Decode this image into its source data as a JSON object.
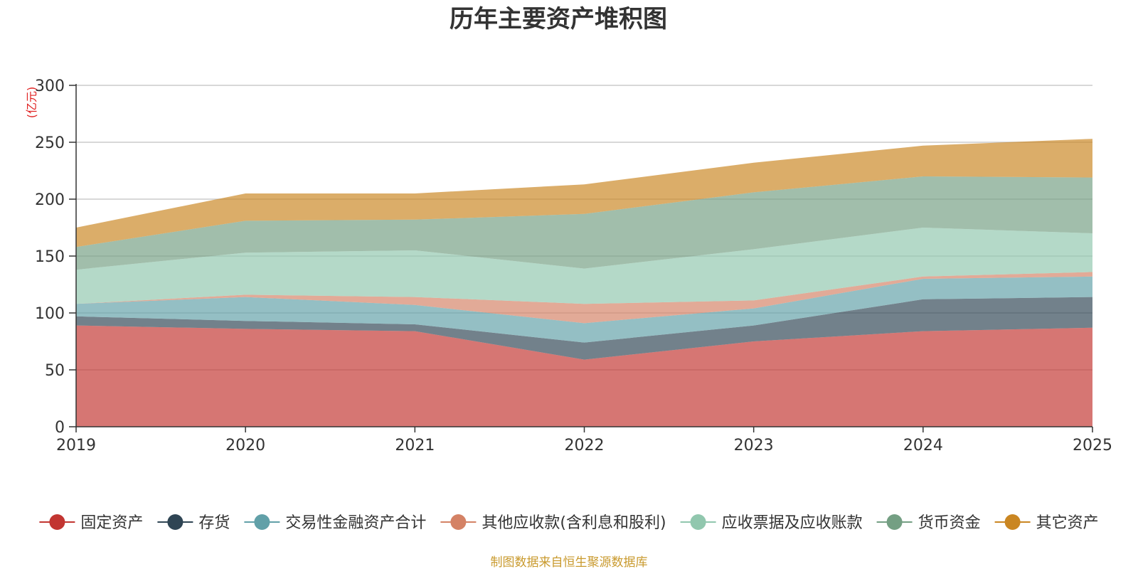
{
  "chart_data": {
    "type": "area",
    "stacked": true,
    "title": "历年主要资产堆积图",
    "ylabel": "(亿元)",
    "xlabel": "",
    "categories": [
      "2019",
      "2020",
      "2021",
      "2022",
      "2023",
      "2024",
      "2025"
    ],
    "yticks": [
      "0",
      "50",
      "100",
      "150",
      "200",
      "250",
      "300"
    ],
    "ylim": [
      0,
      300
    ],
    "grid": true,
    "legend_position": "bottom",
    "series": [
      {
        "name": "固定资产",
        "color": "#c23531",
        "values": [
          89,
          86,
          84,
          59,
          75,
          84,
          87
        ]
      },
      {
        "name": "存货",
        "color": "#2f4554",
        "values": [
          8,
          7,
          6,
          15,
          14,
          28,
          27
        ]
      },
      {
        "name": "交易性金融资产合计",
        "color": "#61a0a8",
        "values": [
          11,
          21,
          17,
          17,
          15,
          18,
          18
        ]
      },
      {
        "name": "其他应收款(含利息和股利)",
        "color": "#d48265",
        "values": [
          0,
          2,
          7,
          17,
          7,
          2,
          4
        ]
      },
      {
        "name": "应收票据及应收账款",
        "color": "#91c7ae",
        "values": [
          30,
          37,
          41,
          31,
          45,
          43,
          34
        ]
      },
      {
        "name": "货币资金",
        "color": "#749f83",
        "values": [
          20,
          28,
          27,
          48,
          50,
          45,
          49
        ]
      },
      {
        "name": "其它资产",
        "color": "#ca8622",
        "values": [
          17,
          24,
          23,
          26,
          26,
          27,
          34
        ]
      }
    ],
    "source_note": "制图数据来自恒生聚源数据库"
  }
}
